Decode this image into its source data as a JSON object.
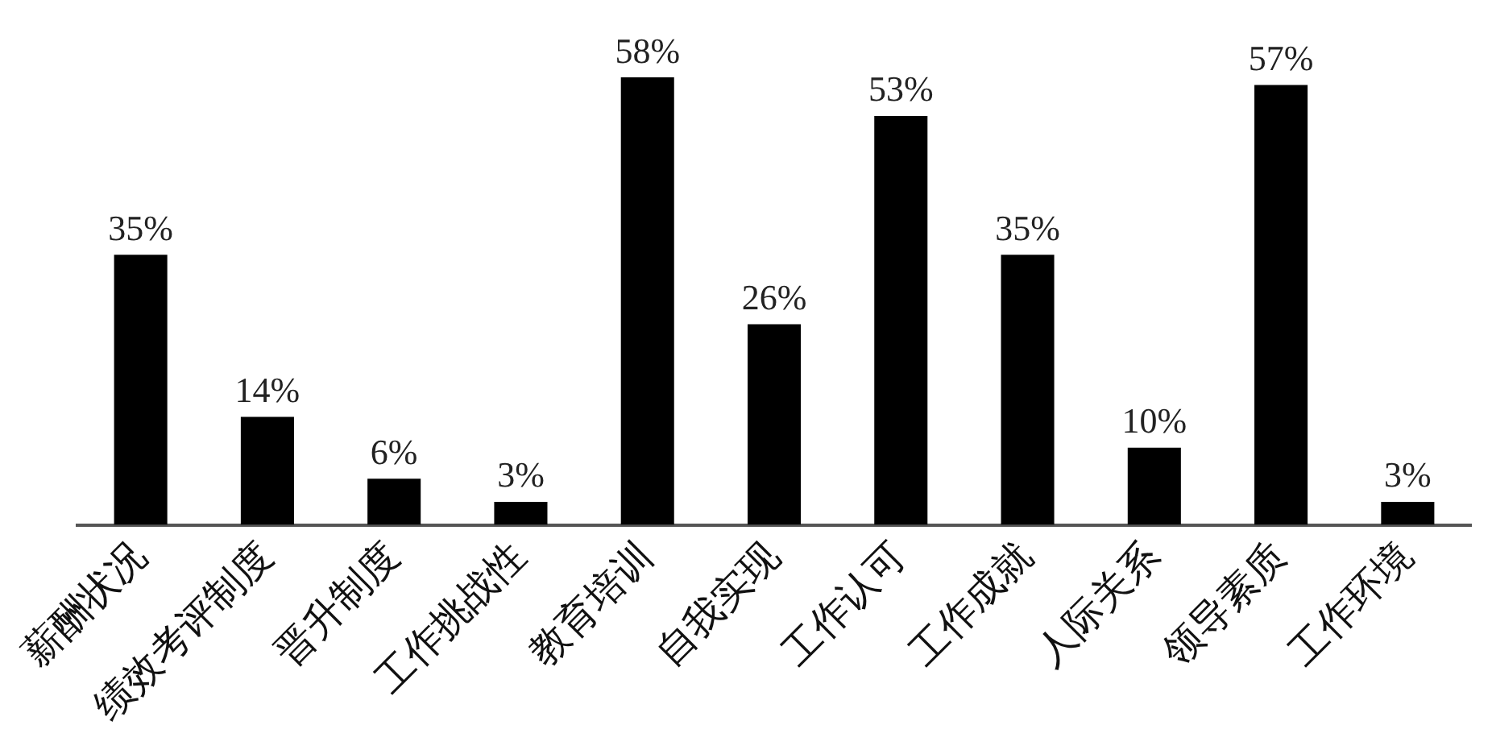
{
  "chart_data": {
    "type": "bar",
    "categories": [
      "薪酬状况",
      "绩效考评制度",
      "晋升制度",
      "工作挑战性",
      "教育培训",
      "自我实现",
      "工作认可",
      "工作成就",
      "人际关系",
      "领导素质",
      "工作环境"
    ],
    "values": [
      35,
      14,
      6,
      3,
      58,
      26,
      53,
      35,
      10,
      57,
      3
    ],
    "value_labels": [
      "35%",
      "14%",
      "6%",
      "3%",
      "58%",
      "26%",
      "53%",
      "35%",
      "10%",
      "57%",
      "3%"
    ],
    "color": "#000000",
    "grid": false,
    "legend": false,
    "tick_labels": "x"
  }
}
